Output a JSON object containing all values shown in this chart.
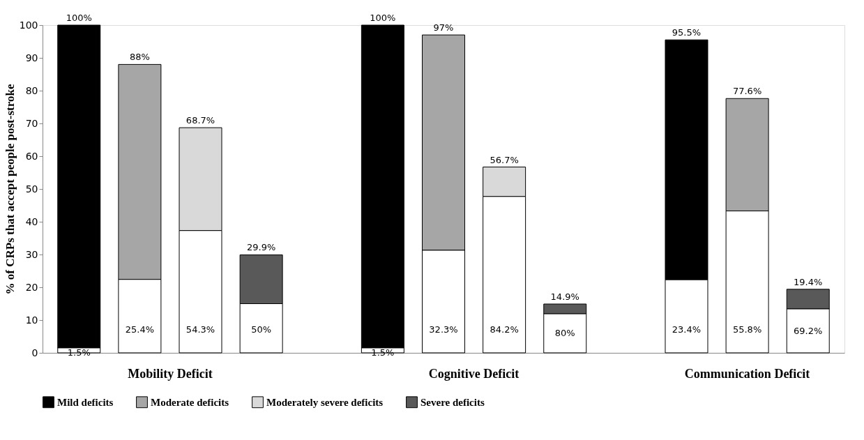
{
  "chart_data": {
    "type": "bar",
    "stacked": true,
    "ylabel": "% of CRPs that accept people post-stroke",
    "categories": [
      null,
      null,
      null,
      null,
      null,
      null,
      null,
      null,
      null,
      null,
      null,
      null,
      null
    ],
    "series": [
      {
        "color": "#ffffff",
        "values": [
          1.5,
          22.4,
          37.3,
          15.0,
          null,
          1.5,
          31.3,
          47.7,
          11.9,
          null,
          22.3,
          43.3,
          13.4
        ]
      },
      {
        "name": "Mild deficits",
        "color": "#000000",
        "values": [
          98.5,
          null,
          null,
          null,
          null,
          98.5,
          null,
          null,
          null,
          null,
          73.2,
          null,
          null
        ]
      },
      {
        "name": "Moderate deficits",
        "color": "#a6a6a6",
        "values": [
          null,
          65.6,
          null,
          null,
          null,
          null,
          65.7,
          null,
          null,
          null,
          null,
          34.3,
          null
        ]
      },
      {
        "name": "Moderately severe deficits",
        "color": "#d9d9d9",
        "values": [
          null,
          null,
          31.4,
          null,
          null,
          null,
          null,
          9.0,
          null,
          null,
          null,
          null,
          null
        ]
      },
      {
        "name": "Severe deficits",
        "color": "#595959",
        "values": [
          null,
          null,
          null,
          14.9,
          null,
          null,
          null,
          null,
          3.0,
          null,
          null,
          null,
          6.0
        ]
      }
    ],
    "totals": [
      "100%",
      "88%",
      "68.7%",
      "29.9%",
      null,
      "100%",
      "97%",
      "56.7%",
      "14.9%",
      null,
      "95.5%",
      "77.6%",
      "19.4%"
    ],
    "annotations": [
      "Mobility Deficit",
      "Cognitive Deficit",
      "Communication Deficit",
      "1.5%",
      "25.4%",
      "54.3%",
      "50%",
      "1.5%",
      "32.3%",
      "84.2%",
      "80%",
      "23.4%",
      "55.8%",
      "69.2%"
    ],
    "ylim": [
      0,
      100
    ],
    "yticks": [
      0,
      10,
      20,
      30,
      40,
      50,
      60,
      70,
      80,
      90,
      100
    ],
    "grid": false,
    "legend": "bottom"
  }
}
